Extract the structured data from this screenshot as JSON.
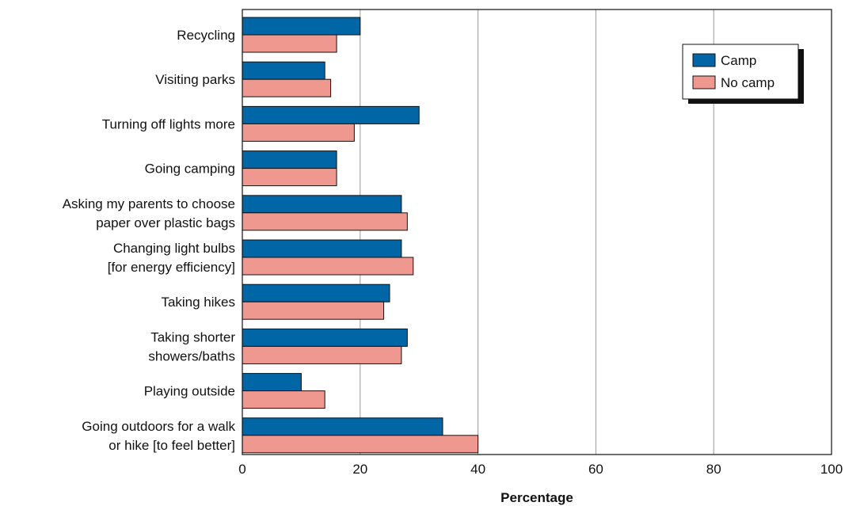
{
  "chart_data": {
    "type": "bar",
    "orientation": "horizontal",
    "categories": [
      [
        "Recycling"
      ],
      [
        "Visiting parks"
      ],
      [
        "Turning off lights more"
      ],
      [
        "Going camping"
      ],
      [
        "Asking my parents to choose",
        "paper over plastic bags"
      ],
      [
        "Changing light bulbs",
        "[for energy efficiency]"
      ],
      [
        "Taking hikes"
      ],
      [
        "Taking shorter",
        "showers/baths"
      ],
      [
        "Playing outside"
      ],
      [
        "Going outdoors for a walk",
        "or hike [to feel better]"
      ]
    ],
    "series": [
      {
        "name": "Camp",
        "color": "#0066a6",
        "values": [
          20,
          14,
          30,
          16,
          27,
          27,
          25,
          28,
          10,
          34
        ]
      },
      {
        "name": "No camp",
        "color": "#ee9890",
        "values": [
          16,
          15,
          19,
          16,
          28,
          29,
          24,
          27,
          14,
          40
        ]
      }
    ],
    "xlabel": "Percentage",
    "ylabel": "",
    "xlim": [
      0,
      100
    ],
    "xticks": [
      0,
      20,
      40,
      60,
      80,
      100
    ],
    "grid": "vertical",
    "legend_position": "top-right"
  }
}
